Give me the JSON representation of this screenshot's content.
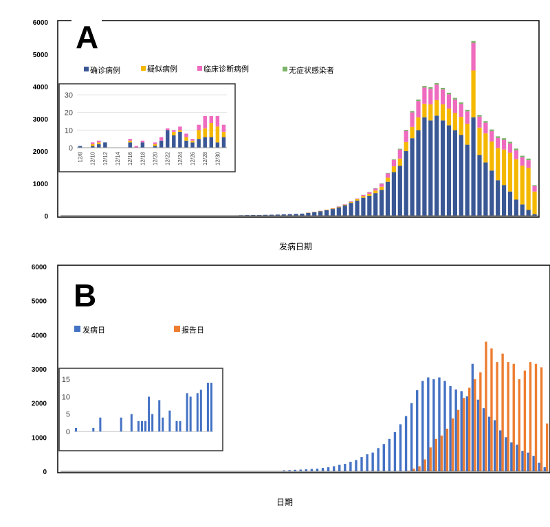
{
  "chart_data": [
    {
      "type": "bar",
      "stacked": true,
      "panel_label": "A",
      "xlabel": "发病日期",
      "ylim": [
        0,
        6000
      ],
      "yticks": [
        0,
        1000,
        2000,
        3000,
        4000,
        5000,
        6000
      ],
      "series": [
        {
          "name": "确诊病例",
          "color": "#3a5795",
          "values": [
            1,
            0,
            0,
            0,
            1,
            0,
            0,
            0,
            0,
            1,
            0,
            0,
            2,
            0,
            0,
            1,
            0,
            0,
            2,
            0,
            2,
            0,
            1,
            0,
            2,
            2,
            0,
            3,
            10,
            16,
            20,
            22,
            23,
            28,
            32,
            36,
            42,
            50,
            58,
            66,
            90,
            110,
            140,
            170,
            210,
            260,
            320,
            400,
            470,
            560,
            620,
            700,
            800,
            1050,
            1350,
            1550,
            2000,
            2400,
            2650,
            3050,
            2950,
            3100,
            2950,
            2800,
            2650,
            2500,
            2200,
            3050,
            1880,
            1650,
            1400,
            1100,
            950,
            750,
            500,
            350,
            180,
            50
          ]
        },
        {
          "name": "疑似病例",
          "color": "#f5b800",
          "values": [
            0,
            0,
            0,
            0,
            0,
            0,
            0,
            0,
            0,
            0,
            0,
            0,
            0,
            0,
            0,
            0,
            0,
            0,
            0,
            0,
            0,
            0,
            0,
            0,
            0,
            0,
            0,
            0,
            0,
            0,
            0,
            0,
            0,
            0,
            0,
            0,
            0,
            0,
            0,
            0,
            5,
            8,
            10,
            12,
            15,
            18,
            22,
            30,
            40,
            50,
            60,
            80,
            100,
            130,
            180,
            220,
            280,
            350,
            400,
            420,
            500,
            480,
            500,
            520,
            530,
            560,
            650,
            1450,
            850,
            900,
            900,
            1000,
            1100,
            1200,
            1250,
            1200,
            1300,
            700
          ]
        },
        {
          "name": "临床诊断病例",
          "color": "#ee6bbf",
          "values": [
            0,
            0,
            0,
            0,
            0,
            0,
            0,
            0,
            0,
            0,
            0,
            0,
            0,
            0,
            0,
            0,
            0,
            0,
            0,
            0,
            0,
            0,
            0,
            0,
            0,
            0,
            0,
            0,
            0,
            0,
            0,
            0,
            0,
            0,
            0,
            0,
            0,
            0,
            0,
            0,
            3,
            4,
            5,
            6,
            8,
            10,
            12,
            16,
            20,
            30,
            50,
            60,
            90,
            130,
            200,
            280,
            350,
            450,
            500,
            500,
            480,
            480,
            460,
            440,
            420,
            400,
            380,
            850,
            340,
            330,
            320,
            310,
            300,
            290,
            280,
            260,
            240,
            170
          ]
        },
        {
          "name": "无症状感染者",
          "color": "#7cb36a",
          "values": [
            0,
            0,
            0,
            0,
            0,
            0,
            0,
            0,
            0,
            0,
            0,
            0,
            0,
            0,
            0,
            0,
            0,
            0,
            0,
            0,
            0,
            0,
            0,
            0,
            0,
            0,
            0,
            0,
            0,
            0,
            0,
            0,
            0,
            0,
            0,
            0,
            0,
            0,
            0,
            0,
            1,
            1,
            1,
            1,
            2,
            2,
            3,
            4,
            5,
            6,
            8,
            10,
            12,
            15,
            20,
            25,
            30,
            40,
            50,
            50,
            50,
            50,
            50,
            50,
            50,
            50,
            50,
            60,
            50,
            50,
            50,
            50,
            50,
            50,
            50,
            50,
            50,
            30
          ]
        }
      ],
      "inset": {
        "categories": [
          "12/8",
          "12/9",
          "12/10",
          "12/11",
          "12/12",
          "12/13",
          "12/14",
          "12/15",
          "12/16",
          "12/17",
          "12/18",
          "12/19",
          "12/20",
          "12/21",
          "12/22",
          "12/23",
          "12/24",
          "12/25",
          "12/26",
          "12/27",
          "12/28",
          "12/29",
          "12/30",
          "12/31"
        ],
        "xticks": [
          "12/8",
          "12/10",
          "12/12",
          "12/14",
          "12/16",
          "12/18",
          "12/20",
          "12/22",
          "12/24",
          "12/26",
          "12/28",
          "12/30"
        ],
        "ylim": [
          0,
          30
        ],
        "yticks": [
          0,
          10,
          20,
          30
        ],
        "series": [
          {
            "name": "确诊病例",
            "values": [
              1,
              0,
              1,
              2,
              3,
              0,
              0,
              0,
              3,
              0,
              3,
              0,
              1,
              4,
              10,
              7,
              9,
              4,
              3,
              5,
              6,
              6,
              3,
              6
            ]
          },
          {
            "name": "疑似病例",
            "values": [
              0,
              0,
              1,
              1,
              0,
              0,
              0,
              0,
              1,
              0,
              0,
              0,
              1,
              0,
              0,
              2,
              1,
              2,
              1,
              5,
              5,
              8,
              9,
              3
            ]
          },
          {
            "name": "临床诊断病例",
            "values": [
              0,
              0,
              1,
              1,
              0,
              0,
              0,
              0,
              1,
              1,
              1,
              0,
              1,
              2,
              1,
              1,
              2,
              2,
              1,
              3,
              7,
              4,
              6,
              4
            ]
          },
          {
            "name": "无症状感染者",
            "values": [
              0,
              0,
              0,
              0,
              0,
              0,
              0,
              0,
              0,
              0,
              0,
              0,
              0,
              0,
              0,
              0,
              0,
              0,
              0,
              0,
              0,
              0,
              0,
              0
            ]
          }
        ]
      }
    },
    {
      "type": "bar",
      "stacked": false,
      "panel_label": "B",
      "xlabel": "日期",
      "ylim": [
        0,
        6000
      ],
      "yticks": [
        0,
        1000,
        2000,
        3000,
        4000,
        5000,
        6000
      ],
      "series": [
        {
          "name": "发病日",
          "color": "#4472c4",
          "values": [
            0,
            0,
            0,
            0,
            0,
            0,
            0,
            0,
            0,
            0,
            0,
            0,
            0,
            0,
            0,
            0,
            0,
            0,
            0,
            0,
            0,
            0,
            0,
            0,
            0,
            0,
            0,
            0,
            0,
            0,
            0,
            0,
            0,
            0,
            0,
            0,
            0,
            0,
            0,
            0,
            30,
            35,
            45,
            50,
            60,
            70,
            80,
            100,
            120,
            150,
            190,
            220,
            280,
            330,
            420,
            500,
            550,
            680,
            800,
            950,
            1150,
            1380,
            1620,
            2000,
            2380,
            2650,
            2750,
            2700,
            2750,
            2650,
            2500,
            2400,
            2350,
            2200,
            3150,
            2100,
            1850,
            1600,
            1500,
            1200,
            1000,
            850,
            780,
            600,
            550,
            450,
            250,
            120
          ]
        },
        {
          "name": "报告日",
          "color": "#ed7d31",
          "values": [
            0,
            0,
            0,
            0,
            0,
            0,
            0,
            0,
            0,
            0,
            0,
            0,
            0,
            0,
            0,
            0,
            0,
            0,
            0,
            0,
            0,
            0,
            0,
            0,
            0,
            0,
            0,
            0,
            0,
            0,
            0,
            0,
            0,
            0,
            0,
            0,
            0,
            0,
            0,
            0,
            0,
            0,
            0,
            0,
            0,
            0,
            0,
            0,
            0,
            0,
            0,
            0,
            0,
            0,
            0,
            0,
            0,
            0,
            0,
            0,
            0,
            0,
            20,
            80,
            150,
            350,
            700,
            950,
            1050,
            1250,
            1550,
            1800,
            2150,
            2450,
            2700,
            2900,
            3800,
            3600,
            3200,
            3450,
            3200,
            3150,
            2700,
            2950,
            3200,
            3150,
            3050,
            1400
          ]
        }
      ],
      "inset": {
        "ylim": [
          0,
          15
        ],
        "yticks": [
          0,
          5,
          10,
          15
        ],
        "values": [
          1,
          0,
          0,
          0,
          0,
          1,
          0,
          4,
          0,
          0,
          0,
          0,
          0,
          4,
          0,
          0,
          5,
          0,
          3,
          3,
          3,
          10,
          5,
          0,
          9,
          4,
          0,
          6,
          0,
          3,
          3,
          0,
          11,
          10,
          0,
          11,
          12,
          0,
          14,
          14
        ]
      }
    }
  ]
}
